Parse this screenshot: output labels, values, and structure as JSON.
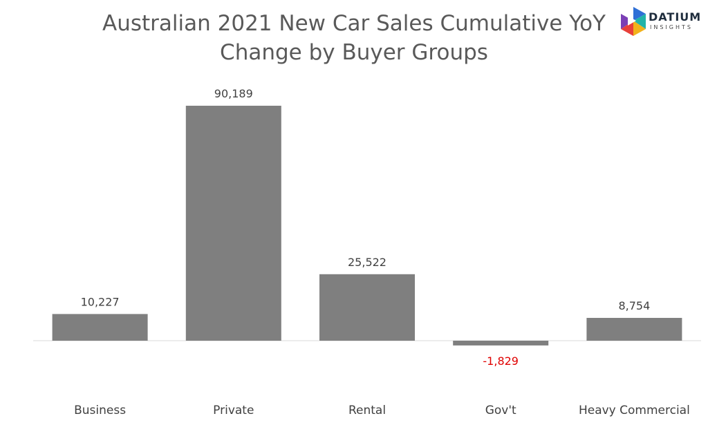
{
  "chart_data": {
    "type": "bar",
    "title_line1": "Australian 2021 New Car Sales Cumulative YoY",
    "title_line2": "Change by Buyer Groups",
    "categories": [
      "Business",
      "Private",
      "Rental",
      "Gov't",
      "Heavy Commercial"
    ],
    "values": [
      10227,
      90189,
      25522,
      -1829,
      8754
    ],
    "value_labels": [
      "10,227",
      "90,189",
      "25,522",
      "-1,829",
      "8,754"
    ],
    "ylim": [
      -2000,
      90189
    ],
    "grid": false,
    "legend": "none",
    "colors": {
      "bar": "#7f7f7f",
      "axis": "#d9d9d9",
      "negative_label": "#e00000",
      "label": "#404040"
    }
  },
  "logo": {
    "word": "DATIUM",
    "sub": "INSIGHTS",
    "icon": "datium-cube-icon",
    "colors": [
      "#2e6fd6",
      "#22b3a8",
      "#f2b21b",
      "#e8403a",
      "#7b3fb5"
    ]
  }
}
